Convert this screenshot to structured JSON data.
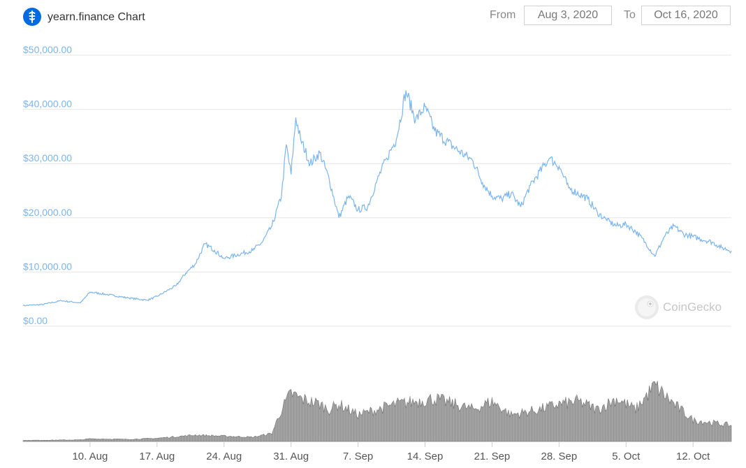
{
  "header": {
    "title": "yearn.finance Chart",
    "from_label": "From",
    "from_value": "Aug 3, 2020",
    "to_label": "To",
    "to_value": "Oct 16, 2020",
    "logo_icon": "yearn-finance-logo-icon"
  },
  "watermark": {
    "text": "CoinGecko",
    "icon": "coingecko-gecko-icon"
  },
  "colors": {
    "price_line": "#7cb5ec",
    "volume": "#8a8a8a",
    "axis_text": "#7cb5ec",
    "grid": "#e6e6e6"
  },
  "chart_data": {
    "type": "line",
    "title": "yearn.finance Chart",
    "y_axis": {
      "ticks": [
        0,
        10000,
        20000,
        30000,
        40000,
        50000
      ],
      "tick_labels": [
        "$0.00",
        "$10,000.00",
        "$20,000.00",
        "$30,000.00",
        "$40,000.00",
        "$50,000.00"
      ],
      "ylim": [
        0,
        50000
      ]
    },
    "x_axis": {
      "tick_labels": [
        "10. Aug",
        "17. Aug",
        "24. Aug",
        "31. Aug",
        "7. Sep",
        "14. Sep",
        "21. Sep",
        "28. Sep",
        "5. Oct",
        "12. Oct"
      ],
      "range": [
        "2020-08-03",
        "2020-10-16"
      ]
    },
    "grid": true,
    "legend": "none",
    "series": [
      {
        "values": [
          [
            "2020-08-03",
            3800
          ],
          [
            "2020-08-05",
            4000
          ],
          [
            "2020-08-07",
            4700
          ],
          [
            "2020-08-09",
            4300
          ],
          [
            "2020-08-10",
            6300
          ],
          [
            "2020-08-12",
            5800
          ],
          [
            "2020-08-14",
            5200
          ],
          [
            "2020-08-16",
            4800
          ],
          [
            "2020-08-17",
            5500
          ],
          [
            "2020-08-19",
            7500
          ],
          [
            "2020-08-20",
            9800
          ],
          [
            "2020-08-21",
            11500
          ],
          [
            "2020-08-22",
            15200
          ],
          [
            "2020-08-23",
            14000
          ],
          [
            "2020-08-24",
            12500
          ],
          [
            "2020-08-26",
            13500
          ],
          [
            "2020-08-27",
            14000
          ],
          [
            "2020-08-28",
            15500
          ],
          [
            "2020-08-29",
            18500
          ],
          [
            "2020-08-30",
            24000
          ],
          [
            "2020-08-30T12",
            33500
          ],
          [
            "2020-08-31",
            28000
          ],
          [
            "2020-08-31T12",
            38500
          ],
          [
            "2020-09-01",
            34500
          ],
          [
            "2020-09-02",
            30000
          ],
          [
            "2020-09-03",
            32000
          ],
          [
            "2020-09-04",
            27000
          ],
          [
            "2020-09-05",
            20000
          ],
          [
            "2020-09-06",
            24000
          ],
          [
            "2020-09-07",
            21500
          ],
          [
            "2020-09-08",
            22000
          ],
          [
            "2020-09-09",
            27000
          ],
          [
            "2020-09-10",
            31000
          ],
          [
            "2020-09-11",
            34500
          ],
          [
            "2020-09-12",
            43500
          ],
          [
            "2020-09-13",
            38000
          ],
          [
            "2020-09-14",
            40500
          ],
          [
            "2020-09-15",
            36000
          ],
          [
            "2020-09-17",
            33000
          ],
          [
            "2020-09-19",
            30500
          ],
          [
            "2020-09-20",
            26500
          ],
          [
            "2020-09-21",
            24000
          ],
          [
            "2020-09-22",
            23500
          ],
          [
            "2020-09-23",
            24500
          ],
          [
            "2020-09-24",
            22000
          ],
          [
            "2020-09-25",
            26000
          ],
          [
            "2020-09-27",
            31000
          ],
          [
            "2020-09-28",
            29500
          ],
          [
            "2020-09-29",
            25500
          ],
          [
            "2020-10-01",
            23500
          ],
          [
            "2020-10-02",
            21000
          ],
          [
            "2020-10-03",
            19500
          ],
          [
            "2020-10-04",
            18500
          ],
          [
            "2020-10-05",
            18800
          ],
          [
            "2020-10-06",
            17500
          ],
          [
            "2020-10-07",
            15500
          ],
          [
            "2020-10-08",
            12900
          ],
          [
            "2020-10-09",
            16500
          ],
          [
            "2020-10-10",
            18500
          ],
          [
            "2020-10-11",
            17000
          ],
          [
            "2020-10-12",
            16500
          ],
          [
            "2020-10-14",
            15500
          ],
          [
            "2020-10-15",
            14500
          ],
          [
            "2020-10-16",
            13900
          ]
        ]
      },
      {
        "type": "area",
        "values": [
          [
            "2020-08-03",
            0.2
          ],
          [
            "2020-08-09",
            0.3
          ],
          [
            "2020-08-10",
            0.5
          ],
          [
            "2020-08-14",
            0.4
          ],
          [
            "2020-08-17",
            0.6
          ],
          [
            "2020-08-21",
            1.2
          ],
          [
            "2020-08-24",
            1.0
          ],
          [
            "2020-08-27",
            0.8
          ],
          [
            "2020-08-29",
            1.5
          ],
          [
            "2020-08-30",
            6
          ],
          [
            "2020-08-31",
            9
          ],
          [
            "2020-09-01",
            8
          ],
          [
            "2020-09-03",
            7
          ],
          [
            "2020-09-04",
            6
          ],
          [
            "2020-09-05",
            7
          ],
          [
            "2020-09-07",
            5
          ],
          [
            "2020-09-09",
            6
          ],
          [
            "2020-09-11",
            7
          ],
          [
            "2020-09-13",
            7.5
          ],
          [
            "2020-09-15",
            8
          ],
          [
            "2020-09-17",
            7
          ],
          [
            "2020-09-19",
            6
          ],
          [
            "2020-09-21",
            7.5
          ],
          [
            "2020-09-23",
            5
          ],
          [
            "2020-09-26",
            6
          ],
          [
            "2020-09-28",
            7
          ],
          [
            "2020-09-30",
            7.5
          ],
          [
            "2020-10-02",
            6
          ],
          [
            "2020-10-04",
            8
          ],
          [
            "2020-10-06",
            6
          ],
          [
            "2020-10-08",
            10.5
          ],
          [
            "2020-10-10",
            7
          ],
          [
            "2020-10-12",
            4
          ],
          [
            "2020-10-14",
            3.5
          ],
          [
            "2020-10-16",
            3
          ]
        ]
      }
    ]
  }
}
